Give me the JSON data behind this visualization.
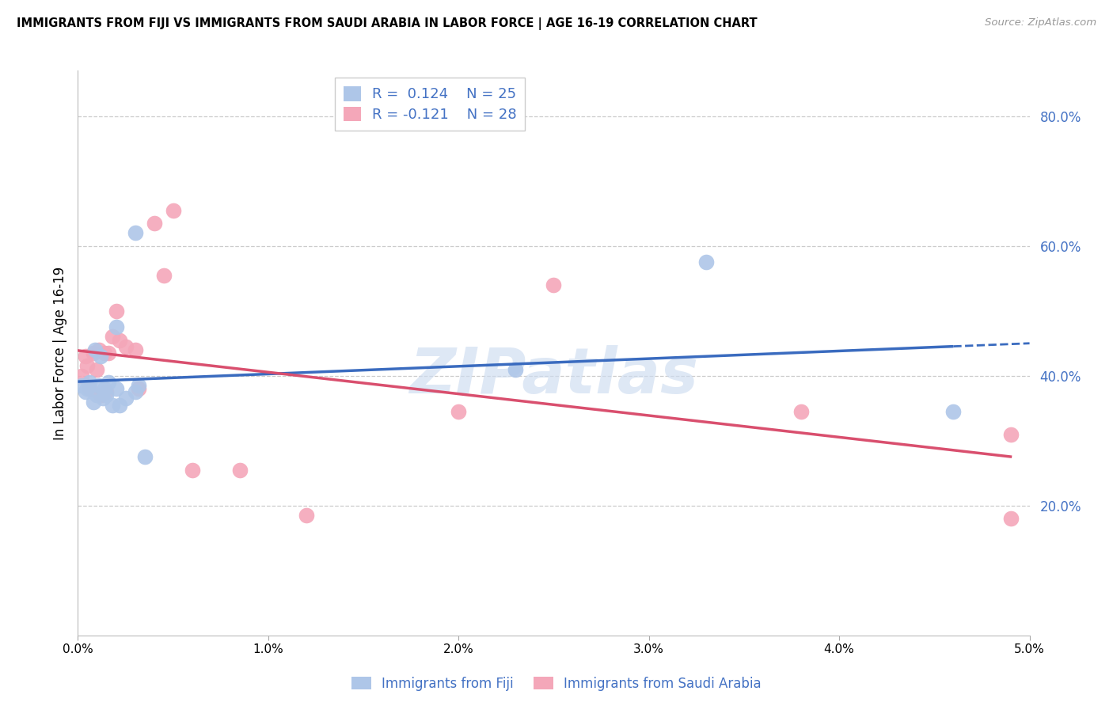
{
  "title": "IMMIGRANTS FROM FIJI VS IMMIGRANTS FROM SAUDI ARABIA IN LABOR FORCE | AGE 16-19 CORRELATION CHART",
  "source": "Source: ZipAtlas.com",
  "ylabel": "In Labor Force | Age 16-19",
  "fiji_R": 0.124,
  "fiji_N": 25,
  "saudi_R": -0.121,
  "saudi_N": 28,
  "fiji_color": "#aec6e8",
  "saudi_color": "#f4a7b9",
  "fiji_line_color": "#3a6bbf",
  "saudi_line_color": "#d94f6e",
  "watermark_color": "#cddcf0",
  "axis_label_color": "#4472C4",
  "xlim": [
    0.0,
    0.05
  ],
  "ylim": [
    0.0,
    0.87
  ],
  "ytick_vals": [
    0.0,
    0.2,
    0.4,
    0.6,
    0.8
  ],
  "ytick_labels": [
    "",
    "20.0%",
    "40.0%",
    "60.0%",
    "80.0%"
  ],
  "xtick_vals": [
    0.0,
    0.01,
    0.02,
    0.03,
    0.04,
    0.05
  ],
  "xtick_labels": [
    "0.0%",
    "1.0%",
    "2.0%",
    "3.0%",
    "4.0%",
    "5.0%"
  ],
  "fiji_x": [
    0.0002,
    0.0004,
    0.0005,
    0.0006,
    0.0008,
    0.0009,
    0.001,
    0.0011,
    0.0012,
    0.0013,
    0.0014,
    0.0015,
    0.0016,
    0.0018,
    0.002,
    0.002,
    0.0022,
    0.0025,
    0.003,
    0.003,
    0.0032,
    0.0035,
    0.023,
    0.033,
    0.046
  ],
  "fiji_y": [
    0.385,
    0.375,
    0.38,
    0.39,
    0.36,
    0.44,
    0.37,
    0.385,
    0.43,
    0.365,
    0.38,
    0.37,
    0.39,
    0.355,
    0.475,
    0.38,
    0.355,
    0.365,
    0.375,
    0.62,
    0.385,
    0.275,
    0.41,
    0.575,
    0.345
  ],
  "saudi_x": [
    0.0002,
    0.0004,
    0.0005,
    0.0006,
    0.0008,
    0.001,
    0.0011,
    0.0012,
    0.0014,
    0.0015,
    0.0016,
    0.0018,
    0.002,
    0.0022,
    0.0025,
    0.003,
    0.0032,
    0.004,
    0.0045,
    0.005,
    0.006,
    0.0085,
    0.012,
    0.02,
    0.025,
    0.038,
    0.049,
    0.049
  ],
  "saudi_y": [
    0.4,
    0.43,
    0.415,
    0.38,
    0.435,
    0.41,
    0.44,
    0.37,
    0.435,
    0.375,
    0.435,
    0.46,
    0.5,
    0.455,
    0.445,
    0.44,
    0.38,
    0.635,
    0.555,
    0.655,
    0.255,
    0.255,
    0.185,
    0.345,
    0.54,
    0.345,
    0.31,
    0.18
  ]
}
